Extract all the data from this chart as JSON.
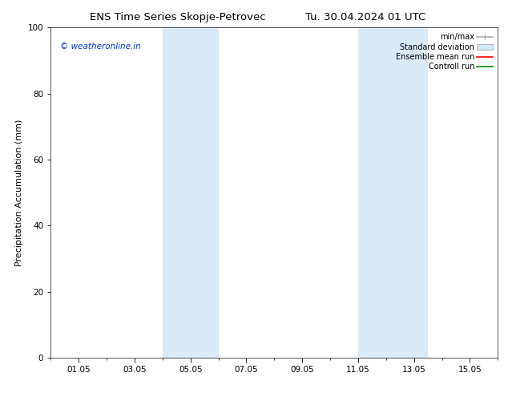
{
  "title_left": "ENS Time Series Skopje-Petrovec",
  "title_right": "Tu. 30.04.2024 01 UTC",
  "ylabel": "Precipitation Accumulation (mm)",
  "ylim": [
    0,
    100
  ],
  "yticks": [
    0,
    20,
    40,
    60,
    80,
    100
  ],
  "xtick_labels": [
    "01.05",
    "03.05",
    "05.05",
    "07.05",
    "09.05",
    "11.05",
    "13.05",
    "15.05"
  ],
  "xtick_positions": [
    1,
    3,
    5,
    7,
    9,
    11,
    13,
    15
  ],
  "xlim": [
    0,
    16
  ],
  "shaded_regions": [
    {
      "xmin": 4.0,
      "xmax": 6.0,
      "color": "#dbeaf7"
    },
    {
      "xmin": 11.0,
      "xmax": 13.5,
      "color": "#dbeaf7"
    }
  ],
  "watermark_text": "© weatheronline.in",
  "watermark_color": "#0033cc",
  "legend_items": [
    {
      "label": "min/max",
      "type": "line",
      "color": "#aaaaaa",
      "lw": 1.2
    },
    {
      "label": "Standard deviation",
      "type": "patch",
      "color": "#d0e8f8"
    },
    {
      "label": "Ensemble mean run",
      "type": "line",
      "color": "#ff0000",
      "lw": 1.2
    },
    {
      "label": "Controll run",
      "type": "line",
      "color": "#008800",
      "lw": 1.2
    }
  ],
  "bg_color": "#ffffff",
  "title_fontsize": 9.5,
  "ylabel_fontsize": 8,
  "tick_fontsize": 7.5,
  "watermark_fontsize": 7.5,
  "legend_fontsize": 7
}
